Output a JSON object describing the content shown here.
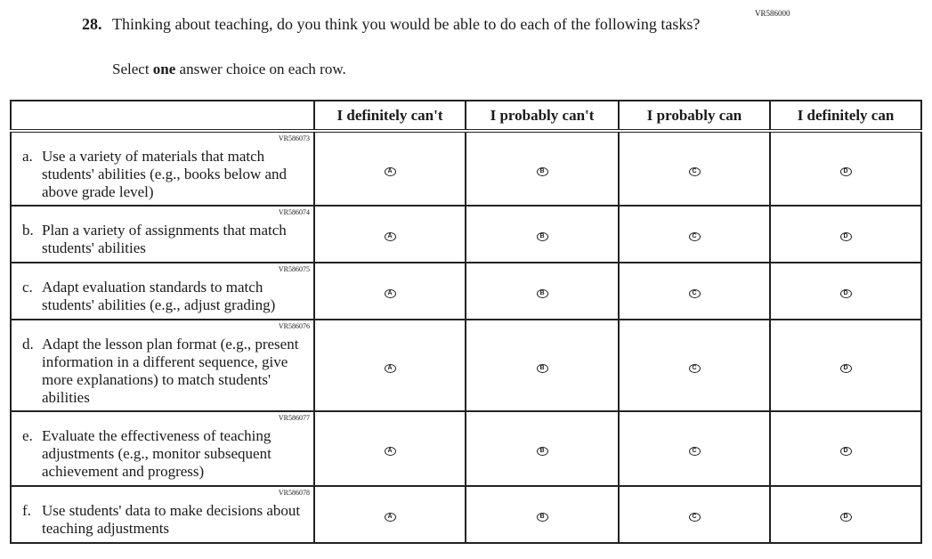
{
  "question": {
    "id": "VR586000",
    "number": "28.",
    "text": "Thinking about teaching, do you think you would be able to do each of the following tasks?",
    "instruction_pre": "Select ",
    "instruction_bold": "one",
    "instruction_post": " answer choice on each row."
  },
  "columns": [
    "I definitely can't",
    "I probably can't",
    "I probably can",
    "I definitely can"
  ],
  "options": [
    "A",
    "B",
    "C",
    "D"
  ],
  "rows": [
    {
      "code": "VR586073",
      "letter": "a.",
      "text": "Use a variety of materials that match students' abilities (e.g., books below and above grade level)"
    },
    {
      "code": "VR586074",
      "letter": "b.",
      "text": "Plan a variety of assignments that match students' abilities"
    },
    {
      "code": "VR586075",
      "letter": "c.",
      "text": "Adapt evaluation standards to match students' abilities (e.g., adjust grading)"
    },
    {
      "code": "VR586076",
      "letter": "d.",
      "text": "Adapt the lesson plan format (e.g., present information in a different sequence, give more explanations) to match students' abilities"
    },
    {
      "code": "VR586077",
      "letter": "e.",
      "text": "Evaluate the effectiveness of teaching adjustments (e.g., monitor subsequent achievement and progress)"
    },
    {
      "code": "VR586078",
      "letter": "f.",
      "text": "Use students' data to make decisions about teaching adjustments"
    }
  ]
}
